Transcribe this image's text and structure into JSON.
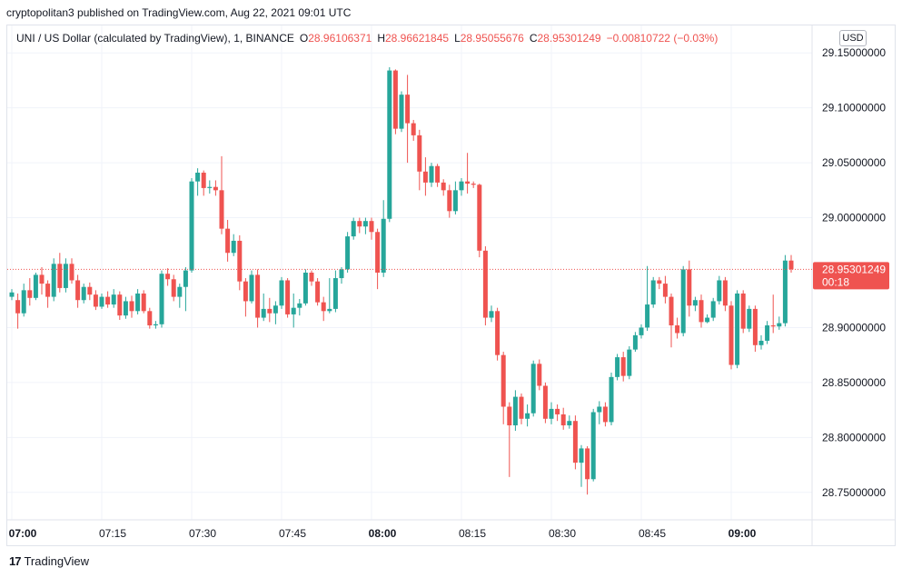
{
  "header": {
    "published_line": "cryptopolitan3 published on TradingView.com, Aug 22, 2021 09:01 UTC"
  },
  "legend": {
    "symbol": "UNI / US Dollar (calculated by TradingView), 1, BINANCE",
    "o_label": "O",
    "o_value": "28.96106371",
    "h_label": "H",
    "h_value": "28.96621845",
    "l_label": "L",
    "l_value": "28.95055676",
    "c_label": "C",
    "c_value": "28.95301249",
    "change": "−0.00810722 (−0.03%)"
  },
  "toolbar": {
    "currency": "USD"
  },
  "price_marker": {
    "price": "28.95301249",
    "countdown": "00:18"
  },
  "brand": {
    "logo_text": "17",
    "name": "TradingView"
  },
  "colors": {
    "up": "#26a69a",
    "down": "#ef5350",
    "grid": "#f0f3fa",
    "text": "#131722"
  },
  "chart_data": {
    "type": "candlestick",
    "symbol": "UNIUSD",
    "interval": "1",
    "y_ticks": [
      "29.15000000",
      "29.10000000",
      "29.05000000",
      "29.00000000",
      "28.90000000",
      "28.85000000",
      "28.80000000",
      "28.75000000"
    ],
    "y_tick_values": [
      29.15,
      29.1,
      29.05,
      29.0,
      28.9,
      28.85,
      28.8,
      28.75
    ],
    "ylim": [
      28.725,
      29.175
    ],
    "x_ticks": [
      {
        "label": "07:00",
        "bar": 0,
        "bold": true
      },
      {
        "label": "07:15",
        "bar": 15,
        "bold": false
      },
      {
        "label": "07:30",
        "bar": 30,
        "bold": false
      },
      {
        "label": "07:45",
        "bar": 45,
        "bold": false
      },
      {
        "label": "08:00",
        "bar": 60,
        "bold": true
      },
      {
        "label": "08:15",
        "bar": 75,
        "bold": false
      },
      {
        "label": "08:30",
        "bar": 90,
        "bold": false
      },
      {
        "label": "08:45",
        "bar": 105,
        "bold": false
      },
      {
        "label": "09:00",
        "bar": 120,
        "bold": true
      }
    ],
    "last_price": 28.95301249,
    "candles": [
      [
        28.928,
        28.932,
        28.925,
        28.935
      ],
      [
        28.925,
        28.913,
        28.899,
        28.931
      ],
      [
        28.913,
        28.934,
        28.91,
        28.94
      ],
      [
        28.934,
        28.927,
        28.92,
        28.945
      ],
      [
        28.927,
        28.948,
        28.925,
        28.95
      ],
      [
        28.948,
        28.94,
        28.93,
        28.955
      ],
      [
        28.94,
        28.928,
        28.918,
        28.943
      ],
      [
        28.928,
        28.958,
        28.924,
        28.963
      ],
      [
        28.958,
        28.936,
        28.932,
        28.968
      ],
      [
        28.936,
        28.958,
        28.932,
        28.963
      ],
      [
        28.958,
        28.943,
        28.94,
        28.963
      ],
      [
        28.943,
        28.925,
        28.918,
        28.948
      ],
      [
        28.925,
        28.937,
        28.922,
        28.94
      ],
      [
        28.937,
        28.93,
        28.925,
        28.941
      ],
      [
        28.93,
        28.919,
        28.916,
        28.934
      ],
      [
        28.919,
        28.928,
        28.917,
        28.931
      ],
      [
        28.928,
        28.921,
        28.918,
        28.933
      ],
      [
        28.921,
        28.93,
        28.918,
        28.935
      ],
      [
        28.93,
        28.911,
        28.907,
        28.933
      ],
      [
        28.911,
        28.924,
        28.908,
        28.928
      ],
      [
        28.924,
        28.915,
        28.909,
        28.929
      ],
      [
        28.915,
        28.931,
        28.912,
        28.935
      ],
      [
        28.931,
        28.915,
        28.913,
        28.934
      ],
      [
        28.915,
        28.902,
        28.899,
        28.918
      ],
      [
        28.902,
        28.903,
        28.899,
        28.906
      ],
      [
        28.903,
        28.949,
        28.9,
        28.952
      ],
      [
        28.949,
        28.944,
        28.938,
        28.954
      ],
      [
        28.944,
        28.928,
        28.924,
        28.948
      ],
      [
        28.928,
        28.937,
        28.918,
        28.94
      ],
      [
        28.937,
        28.952,
        28.915,
        28.955
      ],
      [
        28.952,
        29.033,
        28.95,
        29.036
      ],
      [
        29.033,
        29.041,
        29.02,
        29.045
      ],
      [
        29.041,
        29.027,
        29.02,
        29.043
      ],
      [
        29.027,
        29.028,
        29.022,
        29.034
      ],
      [
        29.028,
        29.025,
        29.02,
        29.034
      ],
      [
        29.025,
        28.99,
        28.985,
        29.056
      ],
      [
        28.99,
        28.968,
        28.96,
        28.998
      ],
      [
        28.968,
        28.979,
        28.965,
        28.985
      ],
      [
        28.979,
        28.942,
        28.934,
        28.984
      ],
      [
        28.942,
        28.924,
        28.91,
        28.945
      ],
      [
        28.924,
        28.948,
        28.922,
        28.952
      ],
      [
        28.948,
        28.909,
        28.9,
        28.953
      ],
      [
        28.909,
        28.917,
        28.906,
        28.931
      ],
      [
        28.917,
        28.913,
        28.905,
        28.927
      ],
      [
        28.913,
        28.92,
        28.903,
        28.924
      ],
      [
        28.92,
        28.943,
        28.917,
        28.946
      ],
      [
        28.943,
        28.912,
        28.909,
        28.945
      ],
      [
        28.912,
        28.918,
        28.9,
        28.931
      ],
      [
        28.918,
        28.922,
        28.911,
        28.926
      ],
      [
        28.922,
        28.95,
        28.92,
        28.953
      ],
      [
        28.95,
        28.942,
        28.938,
        28.952
      ],
      [
        28.942,
        28.923,
        28.92,
        28.945
      ],
      [
        28.923,
        28.915,
        28.906,
        28.928
      ],
      [
        28.915,
        28.917,
        28.913,
        28.945
      ],
      [
        28.917,
        28.945,
        28.914,
        28.952
      ],
      [
        28.945,
        28.953,
        28.94,
        28.955
      ],
      [
        28.953,
        28.983,
        28.95,
        28.987
      ],
      [
        28.983,
        28.997,
        28.98,
        29.0
      ],
      [
        28.997,
        28.992,
        28.986,
        29.0
      ],
      [
        28.992,
        28.997,
        28.985,
        29.0
      ],
      [
        28.997,
        28.987,
        28.98,
        29.0
      ],
      [
        28.987,
        28.95,
        28.935,
        28.99
      ],
      [
        28.95,
        28.999,
        28.946,
        29.016
      ],
      [
        28.999,
        29.134,
        28.996,
        29.137
      ],
      [
        29.134,
        29.081,
        29.076,
        29.135
      ],
      [
        29.081,
        29.112,
        29.078,
        29.115
      ],
      [
        29.112,
        29.086,
        29.05,
        29.13
      ],
      [
        29.086,
        29.075,
        29.07,
        29.089
      ],
      [
        29.075,
        29.042,
        29.025,
        29.08
      ],
      [
        29.042,
        29.032,
        29.02,
        29.055
      ],
      [
        29.032,
        29.047,
        29.028,
        29.05
      ],
      [
        29.047,
        29.032,
        29.028,
        29.049
      ],
      [
        29.032,
        29.025,
        29.02,
        29.035
      ],
      [
        29.025,
        29.006,
        29.0,
        29.03
      ],
      [
        29.006,
        29.025,
        29.003,
        29.033
      ],
      [
        29.025,
        29.033,
        29.02,
        29.036
      ],
      [
        29.033,
        29.031,
        29.022,
        29.059
      ],
      [
        29.031,
        29.03,
        29.027,
        29.033
      ],
      [
        29.03,
        28.97,
        28.964,
        29.031
      ],
      [
        28.97,
        28.909,
        28.902,
        28.974
      ],
      [
        28.909,
        28.915,
        28.905,
        28.92
      ],
      [
        28.915,
        28.875,
        28.87,
        28.918
      ],
      [
        28.875,
        28.828,
        28.812,
        28.878
      ],
      [
        28.828,
        28.811,
        28.764,
        28.832
      ],
      [
        28.811,
        28.837,
        28.806,
        28.843
      ],
      [
        28.837,
        28.817,
        28.812,
        28.84
      ],
      [
        28.817,
        28.822,
        28.81,
        28.83
      ],
      [
        28.822,
        28.867,
        28.819,
        28.87
      ],
      [
        28.867,
        28.847,
        28.843,
        28.871
      ],
      [
        28.847,
        28.817,
        28.813,
        28.85
      ],
      [
        28.817,
        28.826,
        28.812,
        28.832
      ],
      [
        28.826,
        28.821,
        28.815,
        28.83
      ],
      [
        28.821,
        28.811,
        28.807,
        28.827
      ],
      [
        28.811,
        28.815,
        28.808,
        28.82
      ],
      [
        28.815,
        28.777,
        28.771,
        28.82
      ],
      [
        28.777,
        28.79,
        28.755,
        28.793
      ],
      [
        28.79,
        28.762,
        28.748,
        28.792
      ],
      [
        28.762,
        28.823,
        28.76,
        28.826
      ],
      [
        28.823,
        28.828,
        28.812,
        28.833
      ],
      [
        28.828,
        28.814,
        28.81,
        28.832
      ],
      [
        28.814,
        28.855,
        28.811,
        28.859
      ],
      [
        28.855,
        28.873,
        28.852,
        28.876
      ],
      [
        28.873,
        28.856,
        28.851,
        28.878
      ],
      [
        28.856,
        28.88,
        28.853,
        28.883
      ],
      [
        28.88,
        28.893,
        28.878,
        28.896
      ],
      [
        28.893,
        28.9,
        28.89,
        28.903
      ],
      [
        28.9,
        28.921,
        28.897,
        28.956
      ],
      [
        28.921,
        28.943,
        28.918,
        28.946
      ],
      [
        28.943,
        28.94,
        28.935,
        28.946
      ],
      [
        28.94,
        28.928,
        28.922,
        28.947
      ],
      [
        28.928,
        28.902,
        28.882,
        28.931
      ],
      [
        28.902,
        28.895,
        28.89,
        28.909
      ],
      [
        28.895,
        28.953,
        28.892,
        28.956
      ],
      [
        28.953,
        28.92,
        28.91,
        28.961
      ],
      [
        28.92,
        28.925,
        28.915,
        28.928
      ],
      [
        28.925,
        28.905,
        28.9,
        28.93
      ],
      [
        28.905,
        28.909,
        28.904,
        28.912
      ],
      [
        28.909,
        28.924,
        28.906,
        28.927
      ],
      [
        28.924,
        28.943,
        28.921,
        28.947
      ],
      [
        28.943,
        28.92,
        28.915,
        28.946
      ],
      [
        28.92,
        28.866,
        28.862,
        28.924
      ],
      [
        28.866,
        28.931,
        28.863,
        28.934
      ],
      [
        28.931,
        28.899,
        28.895,
        28.934
      ],
      [
        28.899,
        28.917,
        28.896,
        28.92
      ],
      [
        28.917,
        28.884,
        28.878,
        28.92
      ],
      [
        28.884,
        28.888,
        28.88,
        28.893
      ],
      [
        28.888,
        28.902,
        28.885,
        28.906
      ],
      [
        28.902,
        28.901,
        28.895,
        28.93
      ],
      [
        28.901,
        28.904,
        28.898,
        28.91
      ],
      [
        28.904,
        28.961,
        28.901,
        28.966
      ],
      [
        28.961,
        28.953,
        28.95,
        28.966
      ]
    ]
  }
}
